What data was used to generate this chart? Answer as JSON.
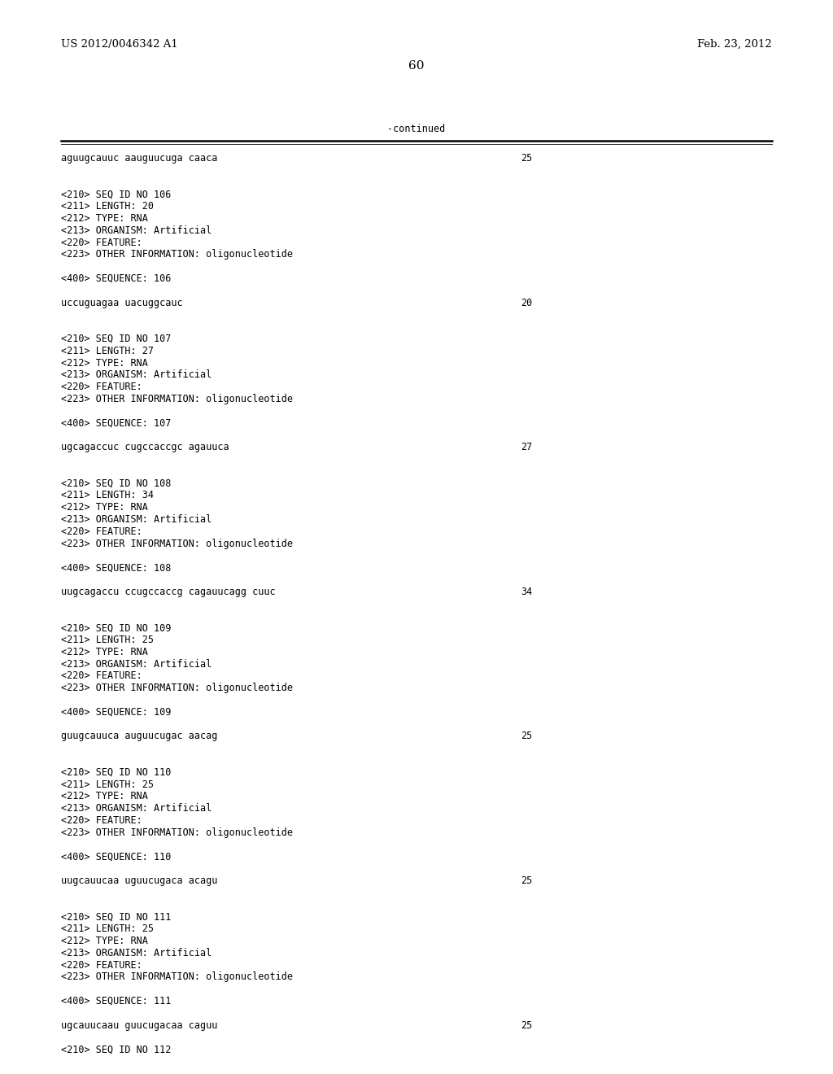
{
  "header_left": "US 2012/0046342 A1",
  "header_right": "Feb. 23, 2012",
  "page_number": "60",
  "continued_label": "-continued",
  "background_color": "#ffffff",
  "text_color": "#000000",
  "font_size": 8.5,
  "header_font_size": 9.5,
  "page_num_font_size": 11,
  "lines": [
    {
      "text": "aguugcauuc aauguucuga caaca",
      "num": "25"
    },
    {
      "text": "",
      "num": ""
    },
    {
      "text": "",
      "num": ""
    },
    {
      "text": "<210> SEQ ID NO 106",
      "num": ""
    },
    {
      "text": "<211> LENGTH: 20",
      "num": ""
    },
    {
      "text": "<212> TYPE: RNA",
      "num": ""
    },
    {
      "text": "<213> ORGANISM: Artificial",
      "num": ""
    },
    {
      "text": "<220> FEATURE:",
      "num": ""
    },
    {
      "text": "<223> OTHER INFORMATION: oligonucleotide",
      "num": ""
    },
    {
      "text": "",
      "num": ""
    },
    {
      "text": "<400> SEQUENCE: 106",
      "num": ""
    },
    {
      "text": "",
      "num": ""
    },
    {
      "text": "uccuguagaa uacuggcauc",
      "num": "20"
    },
    {
      "text": "",
      "num": ""
    },
    {
      "text": "",
      "num": ""
    },
    {
      "text": "<210> SEQ ID NO 107",
      "num": ""
    },
    {
      "text": "<211> LENGTH: 27",
      "num": ""
    },
    {
      "text": "<212> TYPE: RNA",
      "num": ""
    },
    {
      "text": "<213> ORGANISM: Artificial",
      "num": ""
    },
    {
      "text": "<220> FEATURE:",
      "num": ""
    },
    {
      "text": "<223> OTHER INFORMATION: oligonucleotide",
      "num": ""
    },
    {
      "text": "",
      "num": ""
    },
    {
      "text": "<400> SEQUENCE: 107",
      "num": ""
    },
    {
      "text": "",
      "num": ""
    },
    {
      "text": "ugcagaccuc cugccaccgc agauuca",
      "num": "27"
    },
    {
      "text": "",
      "num": ""
    },
    {
      "text": "",
      "num": ""
    },
    {
      "text": "<210> SEQ ID NO 108",
      "num": ""
    },
    {
      "text": "<211> LENGTH: 34",
      "num": ""
    },
    {
      "text": "<212> TYPE: RNA",
      "num": ""
    },
    {
      "text": "<213> ORGANISM: Artificial",
      "num": ""
    },
    {
      "text": "<220> FEATURE:",
      "num": ""
    },
    {
      "text": "<223> OTHER INFORMATION: oligonucleotide",
      "num": ""
    },
    {
      "text": "",
      "num": ""
    },
    {
      "text": "<400> SEQUENCE: 108",
      "num": ""
    },
    {
      "text": "",
      "num": ""
    },
    {
      "text": "uugcagaccu ccugccaccg cagauucagg cuuc",
      "num": "34"
    },
    {
      "text": "",
      "num": ""
    },
    {
      "text": "",
      "num": ""
    },
    {
      "text": "<210> SEQ ID NO 109",
      "num": ""
    },
    {
      "text": "<211> LENGTH: 25",
      "num": ""
    },
    {
      "text": "<212> TYPE: RNA",
      "num": ""
    },
    {
      "text": "<213> ORGANISM: Artificial",
      "num": ""
    },
    {
      "text": "<220> FEATURE:",
      "num": ""
    },
    {
      "text": "<223> OTHER INFORMATION: oligonucleotide",
      "num": ""
    },
    {
      "text": "",
      "num": ""
    },
    {
      "text": "<400> SEQUENCE: 109",
      "num": ""
    },
    {
      "text": "",
      "num": ""
    },
    {
      "text": "guugcauuca auguucugac aacag",
      "num": "25"
    },
    {
      "text": "",
      "num": ""
    },
    {
      "text": "",
      "num": ""
    },
    {
      "text": "<210> SEQ ID NO 110",
      "num": ""
    },
    {
      "text": "<211> LENGTH: 25",
      "num": ""
    },
    {
      "text": "<212> TYPE: RNA",
      "num": ""
    },
    {
      "text": "<213> ORGANISM: Artificial",
      "num": ""
    },
    {
      "text": "<220> FEATURE:",
      "num": ""
    },
    {
      "text": "<223> OTHER INFORMATION: oligonucleotide",
      "num": ""
    },
    {
      "text": "",
      "num": ""
    },
    {
      "text": "<400> SEQUENCE: 110",
      "num": ""
    },
    {
      "text": "",
      "num": ""
    },
    {
      "text": "uugcauucaa uguucugaca acagu",
      "num": "25"
    },
    {
      "text": "",
      "num": ""
    },
    {
      "text": "",
      "num": ""
    },
    {
      "text": "<210> SEQ ID NO 111",
      "num": ""
    },
    {
      "text": "<211> LENGTH: 25",
      "num": ""
    },
    {
      "text": "<212> TYPE: RNA",
      "num": ""
    },
    {
      "text": "<213> ORGANISM: Artificial",
      "num": ""
    },
    {
      "text": "<220> FEATURE:",
      "num": ""
    },
    {
      "text": "<223> OTHER INFORMATION: oligonucleotide",
      "num": ""
    },
    {
      "text": "",
      "num": ""
    },
    {
      "text": "<400> SEQUENCE: 111",
      "num": ""
    },
    {
      "text": "",
      "num": ""
    },
    {
      "text": "ugcauucaau guucugacaa caguu",
      "num": "25"
    },
    {
      "text": "",
      "num": ""
    },
    {
      "text": "<210> SEQ ID NO 112",
      "num": ""
    }
  ]
}
